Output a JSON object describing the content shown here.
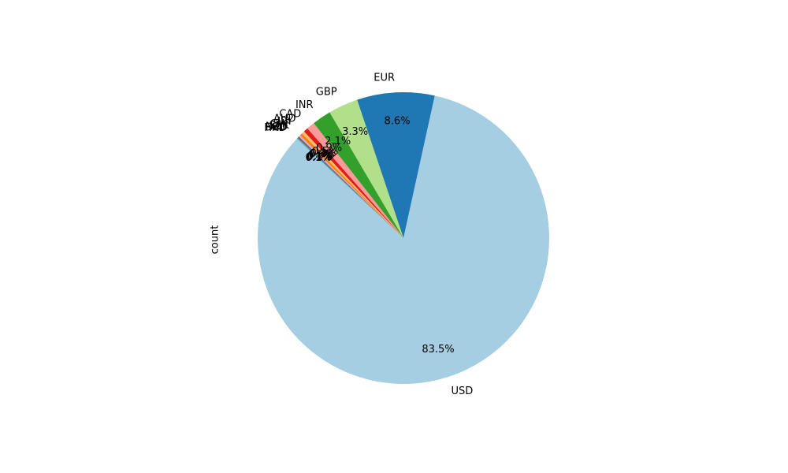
{
  "chart_data": {
    "type": "pie",
    "ylabel": "count",
    "start_angle_deg": 137,
    "direction": "counterclockwise",
    "slices": [
      {
        "label": "USD",
        "value": 83.5,
        "pct_text": "83.5%",
        "color": "#a6cee3"
      },
      {
        "label": "EUR",
        "value": 8.6,
        "pct_text": "8.6%",
        "color": "#1f78b4"
      },
      {
        "label": "GBP",
        "value": 3.3,
        "pct_text": "3.3%",
        "color": "#b2df8a"
      },
      {
        "label": "INR",
        "value": 2.1,
        "pct_text": "2.1%",
        "color": "#33a02c"
      },
      {
        "label": "CAD",
        "value": 0.9,
        "pct_text": "0.9%",
        "color": "#fb9a99"
      },
      {
        "label": "AUD",
        "value": 0.5,
        "pct_text": "0.5%",
        "color": "#e31a1c"
      },
      {
        "label": "JPY",
        "value": 0.3,
        "pct_text": "0.3%",
        "color": "#fdbf6f"
      },
      {
        "label": "CHF",
        "value": 0.3,
        "pct_text": "0.3%",
        "color": "#ff7f00"
      },
      {
        "label": "SEK",
        "value": 0.2,
        "pct_text": "0.2%",
        "color": "#cab2d6"
      },
      {
        "label": "NZD",
        "value": 0.1,
        "pct_text": "0.1%",
        "color": "#6a3d9a"
      },
      {
        "label": "SGD",
        "value": 0.1,
        "pct_text": "0.1%",
        "color": "#b15928"
      },
      {
        "label": "HKD",
        "value": 0.1,
        "pct_text": "0.1%",
        "color": "#17becf"
      }
    ]
  }
}
